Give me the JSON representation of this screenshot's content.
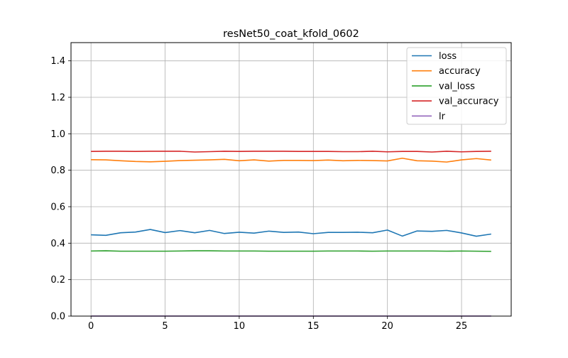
{
  "chart_data": {
    "type": "line",
    "title": "resNet50_coat_kfold_0602",
    "xlabel": "",
    "ylabel": "",
    "xlim": [
      -1.35,
      28.35
    ],
    "ylim": [
      0.0,
      1.5
    ],
    "xticks": [
      0,
      5,
      10,
      15,
      20,
      25
    ],
    "yticks": [
      0.0,
      0.2,
      0.4,
      0.6,
      0.8,
      1.0,
      1.2,
      1.4
    ],
    "grid": true,
    "legend_position": "top-right",
    "x": [
      0,
      1,
      2,
      3,
      4,
      5,
      6,
      7,
      8,
      9,
      10,
      11,
      12,
      13,
      14,
      15,
      16,
      17,
      18,
      19,
      20,
      21,
      22,
      23,
      24,
      25,
      26,
      27
    ],
    "series": [
      {
        "name": "loss",
        "color": "#1f77b4",
        "values": [
          0.446,
          0.443,
          0.457,
          0.461,
          0.475,
          0.458,
          0.469,
          0.457,
          0.47,
          0.453,
          0.46,
          0.455,
          0.466,
          0.459,
          0.461,
          0.452,
          0.459,
          0.459,
          0.46,
          0.457,
          0.472,
          0.439,
          0.467,
          0.465,
          0.47,
          0.456,
          0.438,
          0.45
        ]
      },
      {
        "name": "accuracy",
        "color": "#ff7f0e",
        "values": [
          0.858,
          0.857,
          0.852,
          0.848,
          0.846,
          0.849,
          0.853,
          0.855,
          0.857,
          0.86,
          0.852,
          0.857,
          0.85,
          0.854,
          0.854,
          0.853,
          0.856,
          0.852,
          0.854,
          0.853,
          0.851,
          0.866,
          0.852,
          0.85,
          0.845,
          0.857,
          0.864,
          0.856
        ]
      },
      {
        "name": "val_loss",
        "color": "#2ca02c",
        "values": [
          0.357,
          0.358,
          0.356,
          0.356,
          0.356,
          0.356,
          0.357,
          0.358,
          0.358,
          0.357,
          0.357,
          0.357,
          0.356,
          0.356,
          0.356,
          0.356,
          0.357,
          0.357,
          0.357,
          0.356,
          0.357,
          0.357,
          0.357,
          0.357,
          0.356,
          0.357,
          0.356,
          0.355
        ]
      },
      {
        "name": "val_accuracy",
        "color": "#d62728",
        "values": [
          0.903,
          0.904,
          0.904,
          0.903,
          0.904,
          0.904,
          0.904,
          0.9,
          0.902,
          0.904,
          0.903,
          0.904,
          0.904,
          0.904,
          0.903,
          0.903,
          0.903,
          0.902,
          0.902,
          0.904,
          0.901,
          0.903,
          0.903,
          0.9,
          0.904,
          0.901,
          0.903,
          0.904
        ]
      },
      {
        "name": "lr",
        "color": "#9467bd",
        "values": [
          0.0001,
          0.0001,
          0.0001,
          0.0001,
          0.0001,
          0.0001,
          0.0001,
          0.0001,
          0.0001,
          0.0001,
          0.0001,
          0.0001,
          0.0001,
          0.0001,
          0.0001,
          0.0001,
          0.0001,
          0.0001,
          0.0001,
          0.0001,
          0.0001,
          0.0001,
          0.0001,
          0.0001,
          0.0001,
          0.0001,
          0.0001,
          0.0001
        ]
      }
    ]
  }
}
